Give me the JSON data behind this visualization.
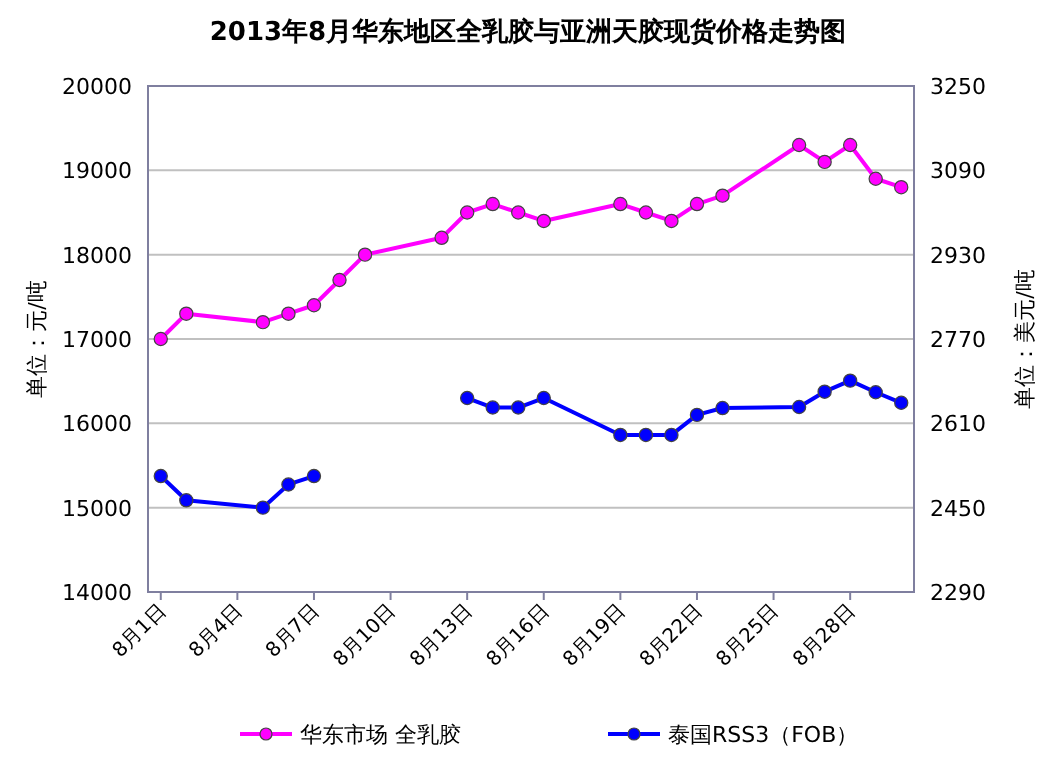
{
  "chart_data": {
    "type": "line",
    "title": "2013年8月华东地区全乳胶与亚洲天胶现货价格走势图",
    "ylabel": "单位：元/吨",
    "y2label": "单位：美元/吨",
    "x": [
      "2013-08-01",
      "2013-08-02",
      "2013-08-05",
      "2013-08-06",
      "2013-08-07",
      "2013-08-08",
      "2013-08-09",
      "2013-08-12",
      "2013-08-13",
      "2013-08-14",
      "2013-08-15",
      "2013-08-16",
      "2013-08-19",
      "2013-08-20",
      "2013-08-21",
      "2013-08-22",
      "2013-08-23",
      "2013-08-26",
      "2013-08-27",
      "2013-08-28",
      "2013-08-29",
      "2013-08-30"
    ],
    "xlim": [
      "2013-07-31T12:00",
      "2013-08-30T12:00"
    ],
    "xticks": [
      {
        "value": "2013-08-01",
        "label": "8月1日"
      },
      {
        "value": "2013-08-04",
        "label": "8月4日"
      },
      {
        "value": "2013-08-07",
        "label": "8月7日"
      },
      {
        "value": "2013-08-10",
        "label": "8月10日"
      },
      {
        "value": "2013-08-13",
        "label": "8月13日"
      },
      {
        "value": "2013-08-16",
        "label": "8月16日"
      },
      {
        "value": "2013-08-19",
        "label": "8月19日"
      },
      {
        "value": "2013-08-22",
        "label": "8月22日"
      },
      {
        "value": "2013-08-25",
        "label": "8月25日"
      },
      {
        "value": "2013-08-28",
        "label": "8月28日"
      }
    ],
    "ylim": [
      14000,
      20000
    ],
    "yticks": [
      14000,
      15000,
      16000,
      17000,
      18000,
      19000,
      20000
    ],
    "y2lim": [
      2290,
      3250
    ],
    "y2ticks": [
      2290,
      2450,
      2610,
      2770,
      2930,
      3090,
      3250
    ],
    "series": [
      {
        "name": "华东市场 全乳胶",
        "color": "#ff00ff",
        "values": [
          17000,
          17300,
          17200,
          17300,
          17400,
          17700,
          18000,
          18200,
          18500,
          18600,
          18500,
          18400,
          18600,
          18500,
          18400,
          18600,
          18700,
          19300,
          19100,
          19300,
          18900,
          18800
        ]
      },
      {
        "name": "泰国RSS3（FOB）",
        "color": "#0000ff",
        "axis": "y2",
        "values": [
          2510,
          2464,
          2450,
          2494,
          2510,
          null,
          null,
          null,
          2658,
          2640,
          2640,
          2658,
          2588,
          2588,
          2588,
          2626,
          2639,
          2641,
          2670,
          2691,
          2669,
          2649
        ]
      }
    ],
    "grid": "y",
    "legend": "bottom",
    "marker": "circle",
    "line_style": "solid"
  }
}
